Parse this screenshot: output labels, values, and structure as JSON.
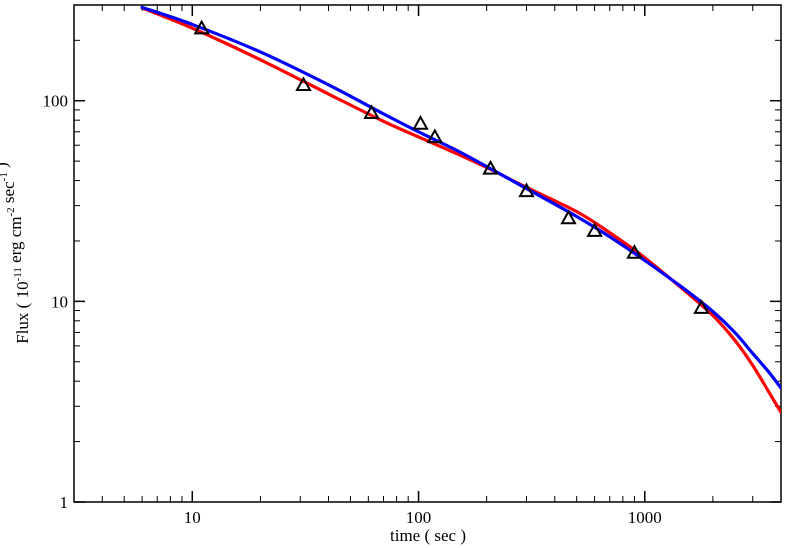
{
  "chart_data": {
    "type": "scatter",
    "xlabel": "time ( sec )",
    "ylabel": {
      "parts": [
        {
          "text": "Flux ( 10",
          "sup": false
        },
        {
          "text": "-11",
          "sup": true
        },
        {
          "text": " erg cm",
          "sup": false
        },
        {
          "text": "-2",
          "sup": true
        },
        {
          "text": " sec",
          "sup": false
        },
        {
          "text": "-1",
          "sup": true
        },
        {
          "text": " )",
          "sup": false
        }
      ]
    },
    "xscale": "log",
    "yscale": "log",
    "xlim": [
      3,
      4000
    ],
    "ylim": [
      1,
      300
    ],
    "xticks": [
      {
        "value": 10,
        "label": "10"
      },
      {
        "value": 100,
        "label": "100"
      },
      {
        "value": 1000,
        "label": "1000"
      }
    ],
    "yticks": [
      {
        "value": 1,
        "label": "1"
      },
      {
        "value": 10,
        "label": "10"
      },
      {
        "value": 100,
        "label": "100"
      }
    ],
    "grid": false,
    "legend": "none",
    "points": {
      "marker": "triangle-open",
      "color": "#000000",
      "x": [
        11,
        31,
        62,
        102,
        118,
        208,
        300,
        460,
        600,
        900,
        1780
      ],
      "y": [
        230,
        120,
        87,
        77,
        66,
        46,
        35.5,
        26,
        22.5,
        17.5,
        9.3
      ]
    },
    "series": [
      {
        "color": "#ff0000",
        "x": [
          6,
          10,
          20,
          40,
          70,
          100,
          150,
          200,
          300,
          500,
          700,
          1000,
          1500,
          2000,
          2500,
          3000,
          3500,
          4000
        ],
        "y": [
          290,
          230,
          160,
          108,
          79,
          66,
          54,
          46.5,
          37,
          28,
          22,
          16.5,
          11.3,
          8.5,
          6.4,
          4.8,
          3.6,
          2.8
        ]
      },
      {
        "color": "#0000ff",
        "x": [
          6,
          10,
          20,
          40,
          70,
          100,
          150,
          200,
          300,
          500,
          700,
          1000,
          1500,
          2000,
          2500,
          3000,
          3500,
          4000
        ],
        "y": [
          292,
          240,
          175,
          120,
          86,
          70,
          56,
          47,
          36.5,
          26.5,
          21,
          16,
          11.5,
          8.9,
          7.0,
          5.5,
          4.5,
          3.7
        ]
      }
    ]
  }
}
